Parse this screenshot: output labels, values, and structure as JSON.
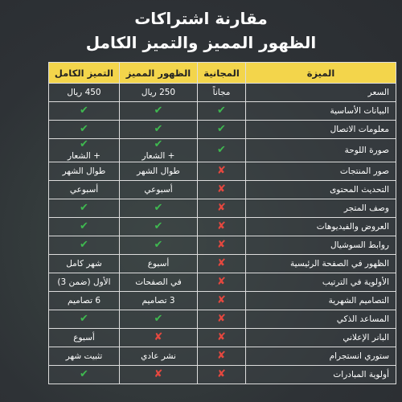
{
  "title": [
    "مقارنة اشتراكات",
    "الظهور المميز والتميز الكامل"
  ],
  "mark_colors": {
    "✔": "#3fb950",
    "✘": "#e5483f"
  },
  "table": {
    "header": [
      "الميزة",
      "المجانية",
      "الظهور المميز",
      "التميز الكامل"
    ],
    "rows": [
      [
        "السعر",
        "مجاناً",
        "250 ريال",
        "450 ريال"
      ],
      [
        "البيانات الأساسية",
        "✔",
        "✔",
        "✔"
      ],
      [
        "معلومات الاتصال",
        "✔",
        "✔",
        "✔"
      ],
      [
        "صورة اللوحة",
        "✔",
        [
          "✔",
          "+ الشعار"
        ],
        [
          "✔",
          "+ الشعار"
        ]
      ],
      [
        "صور المنتجات",
        "✘",
        "طوال الشهر",
        "طوال الشهر"
      ],
      [
        "التحديث المحتوى",
        "✘",
        "أسبوعي",
        "أسبوعي"
      ],
      [
        "وصف المتجر",
        "✘",
        "✔",
        "✔"
      ],
      [
        "العروض والفيديوهات",
        "✘",
        "✔",
        "✔"
      ],
      [
        "روابط السوشيال",
        "✘",
        "✔",
        "✔"
      ],
      [
        "الظهور في الصفحة الرئيسية",
        "✘",
        "أسبوع",
        "شهر كامل"
      ],
      [
        "الأولوية في الترتيب",
        "✘",
        "في الصفحات",
        "الأول (ضمن 3)"
      ],
      [
        "التصاميم الشهرية",
        "✘",
        "3 تصاميم",
        "6 تصاميم"
      ],
      [
        "المساعد الذكي",
        "✘",
        "✔",
        "✔"
      ],
      [
        "البانر الإعلاني",
        "✘",
        "✘",
        "أسبوع"
      ],
      [
        "ستوري انستجرام",
        "✘",
        "نشر عادي",
        "تثبيت شهر"
      ],
      [
        "أولوية المبادرات",
        "✘",
        "✘",
        "✔"
      ]
    ]
  }
}
